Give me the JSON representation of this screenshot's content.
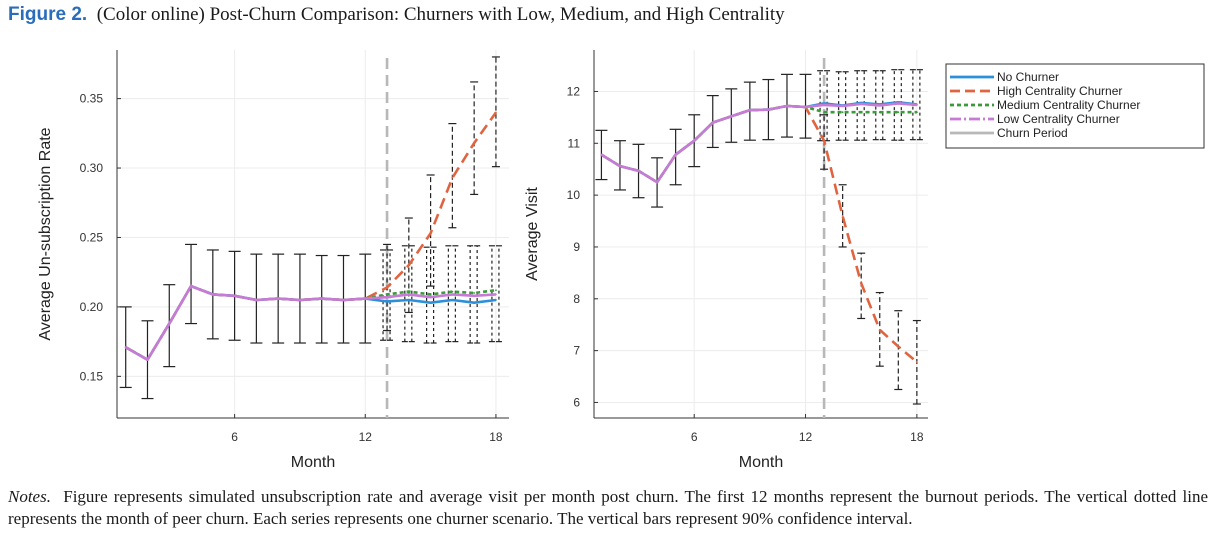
{
  "figure": {
    "label": "Figure 2.",
    "title": "(Color online) Post-Churn Comparison: Churners with Low, Medium, and High Centrality"
  },
  "notes": {
    "label": "Notes.",
    "text": "Figure represents simulated unsubscription rate and average visit per month post churn. The first 12 months represent the burnout periods. The vertical dotted line represents the month of peer churn. Each series represents one churner scenario. The vertical bars represent 90% confidence interval."
  },
  "colors": {
    "no_churner": "#2b8fd9",
    "high": "#e0643f",
    "medium": "#3a9b3a",
    "low": "#c77ad6",
    "churn_period": "#b8b8b8",
    "errorbar": "#222222"
  },
  "legend": {
    "placement": "top-right",
    "entries": [
      "No Churner",
      "High Centrality Churner",
      "Medium Centrality Churner",
      "Low Centrality Churner",
      "Churn Period"
    ]
  },
  "chart_data": [
    {
      "type": "line",
      "xlabel": "Month",
      "ylabel": "Average Un-subscription Rate",
      "xlim": [
        0.6,
        18.6
      ],
      "ylim": [
        0.12,
        0.385
      ],
      "xticks": [
        6,
        12,
        18
      ],
      "yticks": [
        0.15,
        0.2,
        0.25,
        0.3,
        0.35
      ],
      "ytick_labels": [
        "0.15",
        "0.20",
        "0.25",
        "0.30",
        "0.35"
      ],
      "grid": true,
      "churn_month": 13,
      "x": [
        1,
        2,
        3,
        4,
        5,
        6,
        7,
        8,
        9,
        10,
        11,
        12,
        13,
        14,
        15,
        16,
        17,
        18
      ],
      "series": [
        {
          "name": "No Churner",
          "values": [
            0.171,
            0.162,
            0.188,
            0.215,
            0.209,
            0.208,
            0.205,
            0.206,
            0.205,
            0.206,
            0.205,
            0.206,
            0.204,
            0.205,
            0.203,
            0.205,
            0.203,
            0.205
          ]
        },
        {
          "name": "High Centrality Churner",
          "values": [
            0.171,
            0.162,
            0.188,
            0.215,
            0.209,
            0.208,
            0.205,
            0.206,
            0.205,
            0.206,
            0.205,
            0.206,
            0.214,
            0.23,
            0.253,
            0.293,
            0.318,
            0.34
          ]
        },
        {
          "name": "Medium Centrality Churner",
          "values": [
            0.171,
            0.162,
            0.188,
            0.215,
            0.209,
            0.208,
            0.205,
            0.206,
            0.205,
            0.206,
            0.205,
            0.206,
            0.209,
            0.211,
            0.209,
            0.211,
            0.21,
            0.212
          ]
        },
        {
          "name": "Low Centrality Churner",
          "values": [
            0.171,
            0.162,
            0.188,
            0.215,
            0.209,
            0.208,
            0.205,
            0.206,
            0.205,
            0.206,
            0.205,
            0.206,
            0.207,
            0.209,
            0.207,
            0.209,
            0.208,
            0.209
          ]
        }
      ],
      "ci_general": {
        "x": [
          1,
          2,
          3,
          4,
          5,
          6,
          7,
          8,
          9,
          10,
          11,
          12
        ],
        "lower": [
          0.142,
          0.134,
          0.157,
          0.188,
          0.177,
          0.176,
          0.174,
          0.174,
          0.174,
          0.174,
          0.174,
          0.174
        ],
        "upper": [
          0.2,
          0.19,
          0.216,
          0.245,
          0.241,
          0.24,
          0.238,
          0.238,
          0.238,
          0.237,
          0.237,
          0.238
        ]
      },
      "ci_high": {
        "x": [
          13,
          14,
          15,
          16,
          17,
          18
        ],
        "lower": [
          0.183,
          0.196,
          0.215,
          0.257,
          0.281,
          0.301
        ],
        "upper": [
          0.245,
          0.264,
          0.295,
          0.332,
          0.362,
          0.38
        ]
      },
      "ci_other": {
        "x": [
          13,
          14,
          15,
          16,
          17,
          18
        ],
        "lower": [
          0.176,
          0.175,
          0.174,
          0.175,
          0.174,
          0.175
        ],
        "upper": [
          0.241,
          0.244,
          0.243,
          0.244,
          0.244,
          0.244
        ]
      }
    },
    {
      "type": "line",
      "xlabel": "Month",
      "ylabel": "Average Visit",
      "xlim": [
        0.6,
        18.6
      ],
      "ylim": [
        5.7,
        12.8
      ],
      "xticks": [
        6,
        12,
        18
      ],
      "yticks": [
        6,
        7,
        8,
        9,
        10,
        11,
        12
      ],
      "ytick_labels": [
        "6",
        "7",
        "8",
        "9",
        "10",
        "11",
        "12"
      ],
      "grid": true,
      "churn_month": 13,
      "x": [
        1,
        2,
        3,
        4,
        5,
        6,
        7,
        8,
        9,
        10,
        11,
        12,
        13,
        14,
        15,
        16,
        17,
        18
      ],
      "series": [
        {
          "name": "No Churner",
          "values": [
            10.78,
            10.56,
            10.47,
            10.25,
            10.78,
            11.05,
            11.4,
            11.52,
            11.64,
            11.65,
            11.72,
            11.7,
            11.77,
            11.73,
            11.78,
            11.75,
            11.79,
            11.75
          ]
        },
        {
          "name": "High Centrality Churner",
          "values": [
            10.78,
            10.56,
            10.47,
            10.25,
            10.78,
            11.05,
            11.4,
            11.52,
            11.64,
            11.65,
            11.72,
            11.7,
            11.05,
            9.6,
            8.3,
            7.4,
            7.08,
            6.78
          ]
        },
        {
          "name": "Medium Centrality Churner",
          "values": [
            10.78,
            10.56,
            10.47,
            10.25,
            10.78,
            11.05,
            11.4,
            11.52,
            11.64,
            11.65,
            11.72,
            11.7,
            11.6,
            11.6,
            11.6,
            11.6,
            11.6,
            11.6
          ]
        },
        {
          "name": "Low Centrality Churner",
          "values": [
            10.78,
            10.56,
            10.47,
            10.25,
            10.78,
            11.05,
            11.4,
            11.52,
            11.64,
            11.65,
            11.72,
            11.7,
            11.74,
            11.72,
            11.76,
            11.73,
            11.77,
            11.74
          ]
        }
      ],
      "ci_general": {
        "x": [
          1,
          2,
          3,
          4,
          5,
          6,
          7,
          8,
          9,
          10,
          11,
          12
        ],
        "lower": [
          10.3,
          10.1,
          9.95,
          9.77,
          10.2,
          10.55,
          10.92,
          11.02,
          11.06,
          11.07,
          11.12,
          11.1
        ],
        "upper": [
          11.25,
          11.05,
          10.98,
          10.72,
          11.27,
          11.55,
          11.92,
          12.05,
          12.18,
          12.23,
          12.33,
          12.33
        ]
      },
      "ci_high": {
        "x": [
          13,
          14,
          15,
          16,
          17,
          18
        ],
        "lower": [
          10.5,
          9.0,
          7.62,
          6.7,
          6.25,
          5.97
        ],
        "upper": [
          11.55,
          10.2,
          8.88,
          8.12,
          7.77,
          7.58
        ]
      },
      "ci_other": {
        "x": [
          13,
          14,
          15,
          16,
          17,
          18
        ],
        "lower": [
          11.05,
          11.06,
          11.06,
          11.07,
          11.06,
          11.07
        ],
        "upper": [
          12.4,
          12.38,
          12.4,
          12.4,
          12.42,
          12.42
        ]
      }
    }
  ]
}
